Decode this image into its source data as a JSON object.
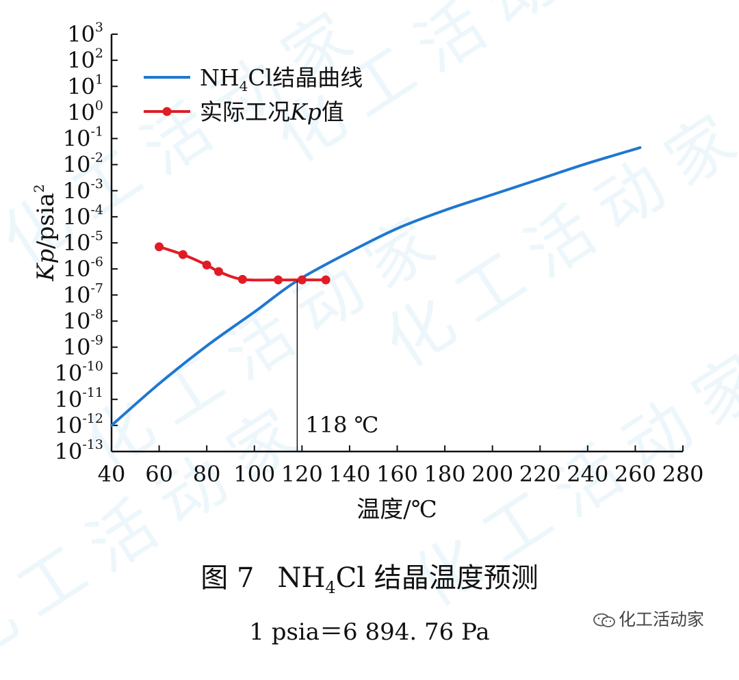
{
  "chart_data": {
    "type": "line",
    "xlabel": "温度/℃",
    "ylabel_italic": "Kp",
    "ylabel_unit": "/psia",
    "ylabel_exp": "2",
    "xlim": [
      40,
      280
    ],
    "ylim_log10": [
      -13,
      3
    ],
    "yscale": "log",
    "x_ticks": [
      40,
      60,
      80,
      100,
      120,
      140,
      160,
      180,
      200,
      220,
      240,
      260,
      280
    ],
    "y_tick_exponents": [
      3,
      2,
      1,
      0,
      -1,
      -2,
      -3,
      -4,
      -5,
      -6,
      -7,
      -8,
      -9,
      -10,
      -11,
      -12,
      -13
    ],
    "y_tick_base": "10",
    "legend_position": "top-left",
    "grid": false,
    "series": [
      {
        "name_parts": [
          "NH",
          "4",
          "Cl结晶曲线"
        ],
        "color": "#1f77d0",
        "marker": "none",
        "x": [
          40,
          60,
          80,
          100,
          118,
          140,
          160,
          180,
          200,
          220,
          240,
          262
        ],
        "y_log10": [
          -12.0,
          -10.4,
          -8.95,
          -7.65,
          -6.45,
          -5.35,
          -4.45,
          -3.75,
          -3.15,
          -2.55,
          -1.95,
          -1.35
        ]
      },
      {
        "name_parts": [
          "实际工况",
          "Kp",
          "值"
        ],
        "color": "#e01c24",
        "marker": "circle",
        "x": [
          60,
          70,
          80,
          85,
          95,
          110,
          120,
          130
        ],
        "y_log10": [
          -5.15,
          -5.45,
          -5.85,
          -6.1,
          -6.4,
          -6.42,
          -6.42,
          -6.42
        ]
      }
    ],
    "annotation": {
      "text": "118 ℃",
      "x": 118,
      "y_log10": -6.45
    }
  },
  "caption": {
    "fig_label": "图 7",
    "title_pre": "NH",
    "title_sub": "4",
    "title_post": "Cl 结晶温度预测"
  },
  "note": "1 psia＝6 894. 76 Pa",
  "logo": {
    "icon": "wechat-icon",
    "text": "化工活动家"
  },
  "watermark": {
    "text": "化工活动家",
    "color": "#7ec3e8"
  }
}
